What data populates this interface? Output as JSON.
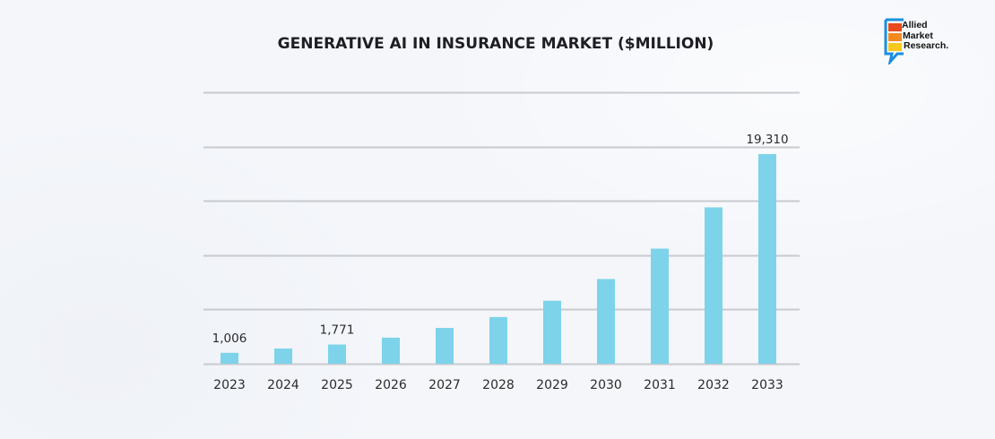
{
  "chart_data": {
    "type": "bar",
    "title": "GENERATIVE AI IN INSURANCE MARKET ($MILLION)",
    "xlabel": "",
    "ylabel": "",
    "categories": [
      "2023",
      "2024",
      "2025",
      "2026",
      "2027",
      "2028",
      "2029",
      "2030",
      "2031",
      "2032",
      "2033"
    ],
    "values": [
      1006,
      1400,
      1771,
      2400,
      3300,
      4300,
      5800,
      7800,
      10600,
      14400,
      19310
    ],
    "data_labels": {
      "0": "1,006",
      "2": "1,771",
      "10": "19,310"
    },
    "ylim": [
      0,
      25000
    ],
    "gridlines": [
      0,
      5000,
      10000,
      15000,
      20000,
      25000
    ],
    "grid": true,
    "y_tick_labels_visible": false,
    "legend": "none",
    "bar_color": "#7dd3ea",
    "grid_color": "#c9cacf"
  },
  "brand": {
    "logo_lines": [
      "Allied",
      "Market",
      "Research."
    ],
    "logo_colors": {
      "frame": "#1a8fe0",
      "bar1": "#e84a1c",
      "bar2": "#f38a1f",
      "bar3": "#f8c91c"
    }
  }
}
